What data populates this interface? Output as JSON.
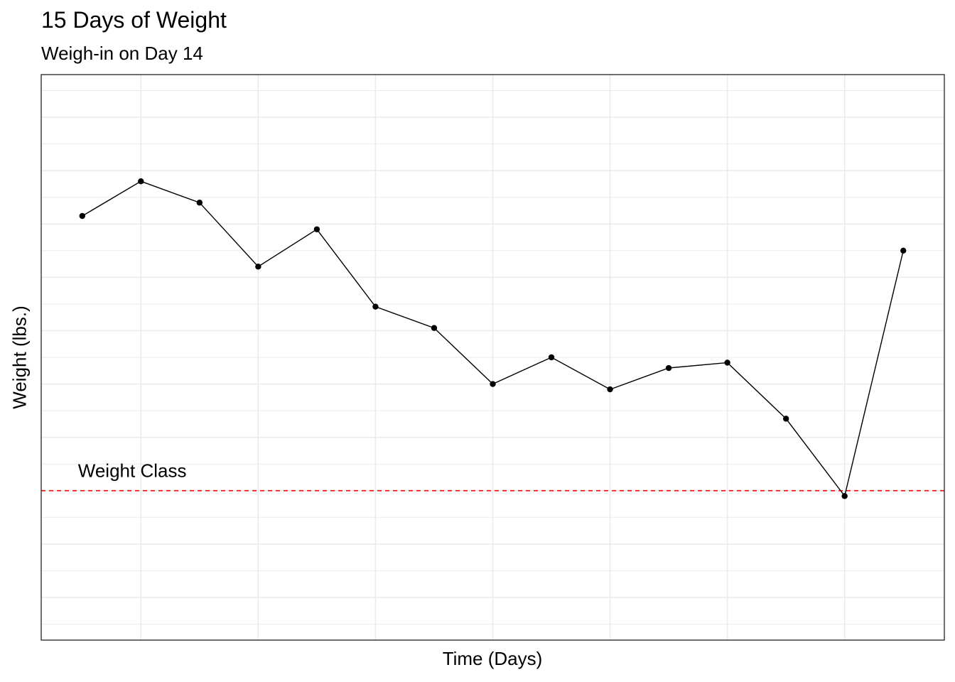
{
  "chart_data": {
    "type": "line",
    "title": "15 Days of Weight",
    "subtitle": "Weigh-in on Day 14",
    "xlabel": "Time (Days)",
    "ylabel": "Weight (lbs.)",
    "x": [
      1,
      2,
      3,
      4,
      5,
      6,
      7,
      8,
      9,
      10,
      11,
      12,
      13,
      14,
      15
    ],
    "series": [
      {
        "values": [
          168.3,
          169.6,
          168.8,
          166.4,
          167.8,
          164.9,
          164.1,
          162.0,
          163.0,
          161.8,
          162.6,
          162.8,
          160.7,
          157.8,
          167.0
        ]
      }
    ],
    "reference_line": {
      "y": 158.0,
      "label": "Weight Class",
      "color": "#ff0000",
      "style": "dashed"
    },
    "xlim": [
      0.3,
      15.7
    ],
    "ylim": [
      152.4,
      173.6
    ],
    "grid": true,
    "tick_labels_shown": false,
    "colors": {
      "line": "#000000",
      "points": "#000000",
      "grid": "#ebebeb",
      "border": "#333333"
    }
  }
}
